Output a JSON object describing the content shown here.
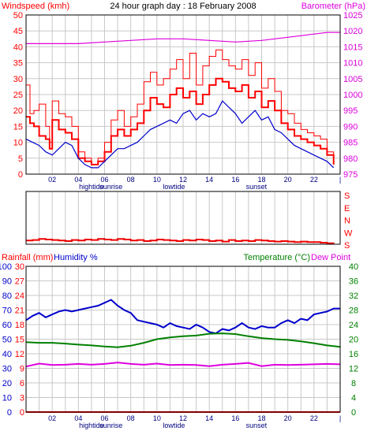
{
  "colors": {
    "background": "#ffffff",
    "frame": "#000000",
    "grid": "#c8c8c8",
    "windspeed": "#ff0000",
    "gust": "#ff0000",
    "wind_avg": "#0000cc",
    "barometer": "#dd00dd",
    "direction": "#ee0000",
    "rainfall": "#ff0000",
    "humidity": "#0000cc",
    "temperature": "#008000",
    "dewpoint": "#dd00dd",
    "events": "#000080"
  },
  "chart_data": [
    {
      "type": "line",
      "title": "24 hour graph day : 18 February 2008",
      "left_axis_label": "Windspeed (kmh)",
      "right_axis_label": "Barometer (hPa)",
      "x_tick_labels": [
        "02",
        "04",
        "06",
        "08",
        "10",
        "12",
        "14",
        "16",
        "18",
        "20",
        "22"
      ],
      "x_range_hours": [
        0,
        24
      ],
      "y_left_range": [
        0,
        50
      ],
      "y_left_ticks": [
        "0",
        "5",
        "10",
        "15",
        "20",
        "25",
        "30",
        "35",
        "40",
        "45",
        "50"
      ],
      "y_right_range": [
        975,
        1025
      ],
      "y_right_ticks": [
        "975",
        "980",
        "985",
        "990",
        "995",
        "1000",
        "1005",
        "1010",
        "1015",
        "1020",
        "1025"
      ],
      "event_labels": [
        {
          "hour": 5.0,
          "text": "hightide"
        },
        {
          "hour": 6.5,
          "text": "sunrise"
        },
        {
          "hour": 11.3,
          "text": "lowtide"
        },
        {
          "hour": 17.6,
          "text": "sunset"
        }
      ],
      "series": [
        {
          "role": "gust",
          "x": [
            0,
            0.3,
            0.6,
            1,
            1.5,
            1.8,
            2,
            2.5,
            3,
            3.5,
            4,
            4.5,
            5,
            5.5,
            6,
            6.5,
            7,
            7.5,
            8,
            8.5,
            9,
            9.5,
            10,
            10.5,
            11,
            11.5,
            12,
            12.5,
            13,
            13.5,
            14,
            14.5,
            15,
            15.5,
            16,
            16.5,
            17,
            17.5,
            18,
            18.5,
            19,
            19.5,
            20,
            20.5,
            21,
            21.5,
            22,
            22.5,
            23,
            23.5
          ],
          "values": [
            28,
            19,
            20,
            22,
            15,
            10,
            23,
            19,
            18,
            15,
            7,
            5,
            3,
            5,
            10,
            17,
            20,
            15,
            18,
            22,
            29,
            32,
            28,
            30,
            33,
            36,
            30,
            38,
            28,
            34,
            37,
            39,
            36,
            34,
            33,
            36,
            31,
            35,
            27,
            30,
            26,
            20,
            19,
            16,
            14,
            13,
            12,
            11,
            7,
            4
          ]
        },
        {
          "role": "speed",
          "x": [
            0,
            0.3,
            0.6,
            1,
            1.5,
            1.8,
            2,
            2.5,
            3,
            3.5,
            4,
            4.5,
            5,
            5.5,
            6,
            6.5,
            7,
            7.5,
            8,
            8.5,
            9,
            9.5,
            10,
            10.5,
            11,
            11.5,
            12,
            12.5,
            13,
            13.5,
            14,
            14.5,
            15,
            15.5,
            16,
            16.5,
            17,
            17.5,
            18,
            18.5,
            19,
            19.5,
            20,
            20.5,
            21,
            21.5,
            22,
            22.5,
            23,
            23.5
          ],
          "values": [
            18,
            16,
            15,
            12,
            11,
            8,
            17,
            14,
            13,
            11,
            5,
            4,
            3,
            4,
            7,
            12,
            14,
            12,
            14,
            16,
            20,
            24,
            22,
            21,
            25,
            27,
            24,
            26,
            22,
            25,
            28,
            30,
            29,
            27,
            26,
            28,
            24,
            26,
            21,
            23,
            20,
            16,
            14,
            12,
            11,
            10,
            9,
            8,
            6,
            3
          ]
        },
        {
          "role": "average",
          "x": [
            0,
            0.5,
            1,
            1.5,
            2,
            2.5,
            3,
            3.5,
            4,
            4.5,
            5,
            5.5,
            6,
            6.5,
            7,
            7.5,
            8,
            8.5,
            9,
            9.5,
            10,
            10.5,
            11,
            11.5,
            12,
            12.5,
            13,
            13.5,
            14,
            14.5,
            15,
            15.5,
            16,
            16.5,
            17,
            17.5,
            18,
            18.5,
            19,
            19.5,
            20,
            20.5,
            21,
            21.5,
            22,
            22.5,
            23,
            23.5
          ],
          "values": [
            11,
            10,
            9,
            7,
            6,
            8,
            10,
            9,
            5,
            3,
            2,
            2,
            4,
            6,
            8,
            8,
            9,
            10,
            12,
            14,
            15,
            16,
            17,
            16,
            19,
            20,
            17,
            19,
            18,
            19,
            23,
            21,
            19,
            16,
            18,
            20,
            17,
            18,
            14,
            13,
            11,
            9,
            8,
            7,
            6,
            5,
            4,
            2
          ]
        },
        {
          "role": "barometer",
          "x": [
            0,
            2,
            4,
            6,
            8,
            10,
            12,
            14,
            16,
            18,
            19,
            20,
            21,
            22,
            23,
            24
          ],
          "values": [
            1016,
            1016,
            1016,
            1016.5,
            1017,
            1017.5,
            1017.5,
            1017,
            1016.5,
            1017,
            1017.5,
            1018,
            1018.5,
            1019,
            1019.5,
            1019.5
          ]
        }
      ]
    },
    {
      "type": "line",
      "title": "",
      "y_tick_labels": [
        "S",
        "E",
        "N",
        "W",
        "S"
      ],
      "x_range_hours": [
        0,
        24
      ],
      "series": [
        {
          "role": "direction",
          "x": [
            0,
            0.5,
            1,
            1.5,
            2,
            2.5,
            3,
            3.5,
            4,
            4.5,
            5,
            5.5,
            6,
            6.5,
            7,
            7.5,
            8,
            8.5,
            9,
            9.5,
            10,
            10.5,
            11,
            11.5,
            12,
            12.5,
            13,
            13.5,
            14,
            14.5,
            15,
            15.5,
            16,
            16.5,
            17,
            17.5,
            18,
            18.5,
            19,
            19.5,
            20,
            20.5,
            21,
            21.5,
            22,
            22.5,
            23,
            23.5
          ],
          "values": [
            0.07,
            0.08,
            0.1,
            0.09,
            0.08,
            0.07,
            0.06,
            0.08,
            0.07,
            0.09,
            0.08,
            0.1,
            0.09,
            0.08,
            0.1,
            0.09,
            0.07,
            0.08,
            0.06,
            0.07,
            0.09,
            0.08,
            0.07,
            0.06,
            0.08,
            0.07,
            0.09,
            0.08,
            0.06,
            0.07,
            0.05,
            0.08,
            0.06,
            0.07,
            0.06,
            0.08,
            0.07,
            0.06,
            0.05,
            0.06,
            0.05,
            0.04,
            0.05,
            0.04,
            0.04,
            0.03,
            0.02,
            0.01
          ]
        }
      ]
    },
    {
      "type": "line",
      "title": "",
      "left_axis_label_1": "Rainfall (mm)",
      "left_axis_label_2": "Humidity %",
      "right_axis_label_1": "Temperature (°C)",
      "right_axis_label_2": "Dew Point",
      "x_tick_labels": [
        "02",
        "04",
        "06",
        "08",
        "10",
        "12",
        "14",
        "16",
        "18",
        "20",
        "22"
      ],
      "x_range_hours": [
        0,
        24
      ],
      "humidity_range": [
        0,
        100
      ],
      "humidity_ticks": [
        "0",
        "10",
        "20",
        "30",
        "40",
        "50",
        "60",
        "70",
        "80",
        "90",
        "100"
      ],
      "rainfall_range": [
        0,
        30
      ],
      "rainfall_ticks": [
        "0",
        "3",
        "6",
        "9",
        "12",
        "15",
        "18",
        "21",
        "24",
        "27",
        "30"
      ],
      "temperature_range": [
        0,
        40
      ],
      "temperature_ticks": [
        "0",
        "4",
        "8",
        "12",
        "16",
        "20",
        "24",
        "28",
        "32",
        "36",
        "40"
      ],
      "event_labels": [
        {
          "hour": 5.0,
          "text": "hightide"
        },
        {
          "hour": 6.5,
          "text": "sunrise"
        },
        {
          "hour": 11.3,
          "text": "lowtide"
        },
        {
          "hour": 17.6,
          "text": "sunset"
        }
      ],
      "series": [
        {
          "role": "humidity",
          "x": [
            0,
            0.5,
            1,
            1.5,
            2,
            2.5,
            3,
            3.5,
            4,
            4.5,
            5,
            5.5,
            6,
            6.5,
            7,
            7.5,
            8,
            8.5,
            9,
            9.5,
            10,
            10.5,
            11,
            11.5,
            12,
            12.5,
            13,
            13.5,
            14,
            14.5,
            15,
            15.5,
            16,
            16.5,
            17,
            17.5,
            18,
            18.5,
            19,
            19.5,
            20,
            20.5,
            21,
            21.5,
            22,
            22.5,
            23,
            23.5,
            24
          ],
          "values": [
            63,
            66,
            68,
            65,
            67,
            69,
            70,
            69,
            70,
            71,
            72,
            73,
            75,
            77,
            73,
            70,
            68,
            63,
            62,
            61,
            60,
            58,
            61,
            59,
            58,
            57,
            60,
            58,
            55,
            54,
            57,
            56,
            58,
            61,
            58,
            57,
            59,
            58,
            58,
            61,
            63,
            61,
            64,
            63,
            67,
            68,
            69,
            71,
            71
          ]
        },
        {
          "role": "temperature",
          "x": [
            0,
            1,
            2,
            3,
            4,
            5,
            6,
            7,
            8,
            9,
            10,
            11,
            12,
            13,
            14,
            15,
            16,
            17,
            18,
            19,
            20,
            21,
            22,
            23,
            24
          ],
          "values": [
            19.2,
            19,
            19,
            18.8,
            18.5,
            18.3,
            18,
            17.8,
            18.2,
            19,
            20,
            20.5,
            20.8,
            21,
            21.5,
            21.6,
            21.4,
            20.8,
            20.3,
            20,
            19.8,
            19.4,
            18.9,
            18.3,
            17.9
          ]
        },
        {
          "role": "dewpoint",
          "x": [
            0,
            1,
            2,
            3,
            4,
            5,
            6,
            7,
            8,
            9,
            10,
            11,
            12,
            13,
            14,
            15,
            16,
            17,
            18,
            19,
            20,
            21,
            22,
            23,
            24
          ],
          "values": [
            12.5,
            13.3,
            12.9,
            13,
            13.2,
            13,
            13.2,
            13.6,
            13.2,
            13,
            13.3,
            12.9,
            13,
            12.9,
            12.6,
            13,
            13.2,
            13.5,
            12.6,
            13,
            12.9,
            13,
            13.1,
            13.2,
            13.1
          ]
        },
        {
          "role": "rainfall",
          "x": [
            0,
            24
          ],
          "values": [
            0,
            0
          ]
        }
      ]
    }
  ]
}
